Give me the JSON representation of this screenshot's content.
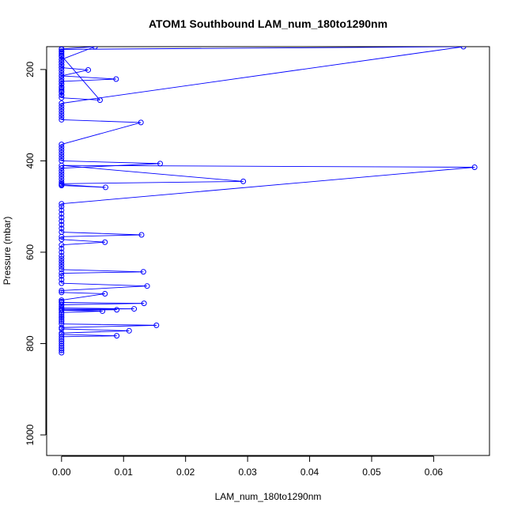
{
  "chart_data": {
    "type": "line",
    "title": "ATOM1 Southbound LAM_num_180to1290nm",
    "xlabel": "LAM_num_180to1290nm",
    "ylabel": "Pressure (mbar)",
    "xlim": [
      -0.0024,
      0.069
    ],
    "ylim": [
      1045,
      150
    ],
    "y_reversed": true,
    "grid": false,
    "x_ticks": [
      0.0,
      0.01,
      0.02,
      0.03,
      0.04,
      0.05,
      0.06
    ],
    "x_tick_labels": [
      "0.00",
      "0.01",
      "0.02",
      "0.03",
      "0.04",
      "0.05",
      "0.06"
    ],
    "y_ticks": [
      200,
      400,
      600,
      800,
      1000
    ],
    "y_tick_labels": [
      "200",
      "400",
      "600",
      "800",
      "1000"
    ],
    "colors": {
      "series": "#0000ff",
      "axes": "#000000",
      "background": "#ffffff"
    },
    "series": [
      {
        "marker": "open-circle",
        "points": [
          [
            0.0,
            820
          ],
          [
            0.0,
            815
          ],
          [
            0.0,
            810
          ],
          [
            0.0,
            805
          ],
          [
            0.0,
            800
          ],
          [
            0.0,
            795
          ],
          [
            0.0,
            790
          ],
          [
            0.0,
            785
          ],
          [
            0.0089,
            783
          ],
          [
            0.0,
            780
          ],
          [
            0.0,
            777
          ],
          [
            0.0109,
            772
          ],
          [
            0.0,
            768
          ],
          [
            0.0,
            765
          ],
          [
            0.0153,
            760
          ],
          [
            0.0,
            757
          ],
          [
            0.0,
            752
          ],
          [
            0.0,
            748
          ],
          [
            0.0,
            744
          ],
          [
            0.0,
            740
          ],
          [
            0.0,
            736
          ],
          [
            0.0,
            732
          ],
          [
            0.0066,
            729
          ],
          [
            0.0,
            727
          ],
          [
            0.0089,
            726
          ],
          [
            0.0,
            725
          ],
          [
            0.0117,
            724
          ],
          [
            0.0,
            722
          ],
          [
            0.0,
            719
          ],
          [
            0.0,
            715
          ],
          [
            0.0133,
            712
          ],
          [
            0.0,
            710
          ],
          [
            0.0,
            708
          ],
          [
            0.0,
            705
          ],
          [
            0.007,
            691
          ],
          [
            0.0,
            688
          ],
          [
            0.0,
            684
          ],
          [
            0.0138,
            674
          ],
          [
            0.0,
            668
          ],
          [
            0.0,
            660
          ],
          [
            0.0,
            652
          ],
          [
            0.0,
            646
          ],
          [
            0.0132,
            643
          ],
          [
            0.0,
            638
          ],
          [
            0.0,
            632
          ],
          [
            0.0,
            626
          ],
          [
            0.0,
            620
          ],
          [
            0.0,
            614
          ],
          [
            0.0,
            608
          ],
          [
            0.0,
            600
          ],
          [
            0.0,
            592
          ],
          [
            0.0,
            584
          ],
          [
            0.007,
            578
          ],
          [
            0.0,
            572
          ],
          [
            0.0,
            566
          ],
          [
            0.0129,
            562
          ],
          [
            0.0,
            556
          ],
          [
            0.0,
            548
          ],
          [
            0.0,
            540
          ],
          [
            0.0,
            532
          ],
          [
            0.0,
            524
          ],
          [
            0.0,
            516
          ],
          [
            0.0,
            508
          ],
          [
            0.0,
            500
          ],
          [
            0.0,
            494
          ],
          [
            0.0666,
            414
          ],
          [
            0.0,
            410
          ],
          [
            0.0293,
            445
          ],
          [
            0.0,
            450
          ],
          [
            0.0,
            454
          ],
          [
            0.0071,
            458
          ],
          [
            0.0,
            452
          ],
          [
            0.0,
            446
          ],
          [
            0.0,
            440
          ],
          [
            0.0,
            434
          ],
          [
            0.0,
            428
          ],
          [
            0.0,
            422
          ],
          [
            0.0,
            416
          ],
          [
            0.0159,
            406
          ],
          [
            0.0,
            400
          ],
          [
            0.0,
            394
          ],
          [
            0.0,
            388
          ],
          [
            0.0,
            382
          ],
          [
            0.0,
            376
          ],
          [
            0.0,
            370
          ],
          [
            0.0,
            364
          ],
          [
            0.0128,
            316
          ],
          [
            0.0,
            310
          ],
          [
            0.0,
            304
          ],
          [
            0.0,
            298
          ],
          [
            0.0,
            292
          ],
          [
            0.0,
            286
          ],
          [
            0.0,
            280
          ],
          [
            0.0,
            274
          ],
          [
            0.0648,
            150
          ],
          [
            0.0,
            156
          ],
          [
            0.0,
            162
          ],
          [
            0.0,
            170
          ],
          [
            0.0062,
            267
          ],
          [
            0.0,
            262
          ],
          [
            0.0,
            256
          ],
          [
            0.0,
            250
          ],
          [
            0.0,
            244
          ],
          [
            0.0,
            238
          ],
          [
            0.0,
            232
          ],
          [
            0.0,
            226
          ],
          [
            0.0088,
            221
          ],
          [
            0.0,
            214
          ],
          [
            0.0043,
            201
          ],
          [
            0.0,
            196
          ],
          [
            0.0,
            190
          ],
          [
            0.0,
            184
          ],
          [
            0.0,
            178
          ],
          [
            0.0054,
            150
          ],
          [
            0.0,
            155
          ],
          [
            0.0,
            160
          ],
          [
            0.0,
            166
          ],
          [
            0.0,
            172
          ],
          [
            0.0,
            178
          ],
          [
            0.0,
            184
          ],
          [
            0.0,
            190
          ],
          [
            0.0,
            196
          ],
          [
            0.0,
            202
          ],
          [
            0.0,
            208
          ],
          [
            0.0,
            214
          ],
          [
            0.0,
            220
          ],
          [
            0.0,
            226
          ],
          [
            0.0,
            232
          ],
          [
            0.0,
            240
          ],
          [
            0.0,
            248
          ],
          [
            0.0,
            256
          ]
        ]
      }
    ]
  }
}
